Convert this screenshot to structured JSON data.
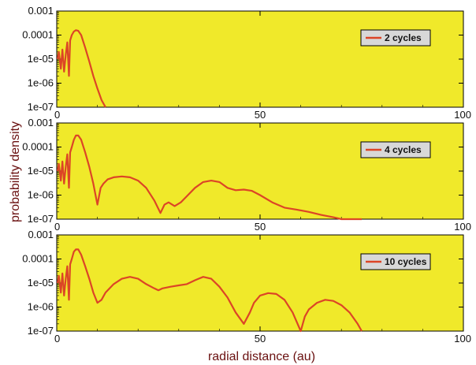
{
  "chart_data": {
    "type": "line",
    "xlabel": "radial distance (au)",
    "ylabel": "probability density",
    "xlim": [
      0,
      100
    ],
    "ylim": [
      1e-07,
      0.001
    ],
    "yscale": "log",
    "grid": false,
    "legend_placement": "top-right",
    "colors": {
      "background": "#f0e92a",
      "line": "#dc4526",
      "legend_box": "#d8d8d8"
    },
    "x_ticks": [
      "0",
      "50",
      "100"
    ],
    "y_ticks": [
      "0.001",
      "0.0001",
      "1e-05",
      "1e-06",
      "1e-07"
    ],
    "panels": [
      {
        "legend": "2 cycles",
        "x": [
          0.2,
          0.5,
          1,
          1.4,
          1.8,
          2.2,
          2.6,
          3,
          3.3,
          3.7,
          4.2,
          4.7,
          5.3,
          6,
          7,
          8,
          9,
          10,
          11,
          12
        ],
        "y": [
          1e-05,
          2e-05,
          4e-06,
          2.5e-05,
          3e-06,
          1.5e-05,
          5e-05,
          2e-06,
          6e-05,
          0.0001,
          0.00014,
          0.00016,
          0.00015,
          0.0001,
          3e-05,
          8e-06,
          2e-06,
          6e-07,
          2e-07,
          1e-07
        ]
      },
      {
        "legend": "4 cycles",
        "x": [
          0.2,
          0.5,
          1,
          1.4,
          1.8,
          2.2,
          2.6,
          3,
          3.3,
          3.7,
          4.2,
          4.7,
          5.3,
          6,
          7,
          8,
          9,
          10,
          10.8,
          11.5,
          12.5,
          14,
          16,
          18,
          20,
          22,
          24,
          25.5,
          26.5,
          27.5,
          29,
          30.5,
          32,
          34,
          36,
          38,
          40,
          42,
          44,
          46,
          48,
          50,
          53,
          56,
          59,
          62,
          65,
          68,
          70,
          72,
          75
        ],
        "y": [
          1e-05,
          2e-05,
          4e-06,
          2.5e-05,
          3e-06,
          1.5e-05,
          5e-05,
          2e-06,
          6e-05,
          0.0001,
          0.0002,
          0.0003,
          0.0003,
          0.0002,
          6e-05,
          1.5e-05,
          3e-06,
          4e-07,
          2e-06,
          3e-06,
          4.5e-06,
          5.5e-06,
          6e-06,
          5.5e-06,
          4e-06,
          2e-06,
          6e-07,
          1.8e-07,
          4e-07,
          5e-07,
          3.5e-07,
          5e-07,
          9e-07,
          2e-06,
          3.5e-06,
          4e-06,
          3.5e-06,
          2e-06,
          1.6e-06,
          1.7e-06,
          1.5e-06,
          1e-06,
          5e-07,
          3e-07,
          2.5e-07,
          2e-07,
          1.5e-07,
          1.2e-07,
          1e-07,
          1e-07,
          1e-07
        ]
      },
      {
        "legend": "10 cycles",
        "x": [
          0.2,
          0.5,
          1,
          1.4,
          1.8,
          2.2,
          2.6,
          3,
          3.3,
          3.7,
          4.2,
          4.7,
          5.3,
          6,
          7,
          8,
          9,
          10,
          11,
          12,
          14,
          16,
          18,
          20,
          22,
          24,
          25,
          26,
          28,
          30,
          32,
          34,
          36,
          38,
          40,
          42,
          44,
          46,
          47.5,
          48.5,
          50,
          52,
          54,
          56,
          58,
          60,
          61,
          62,
          64,
          66,
          68,
          70,
          72,
          74,
          75
        ],
        "y": [
          1e-05,
          2e-05,
          4e-06,
          2.5e-05,
          3e-06,
          1.5e-05,
          5e-05,
          2e-06,
          6e-05,
          0.0001,
          0.0002,
          0.00025,
          0.00025,
          0.00015,
          5e-05,
          1.5e-05,
          4e-06,
          1.5e-06,
          2e-06,
          4e-06,
          9e-06,
          1.5e-05,
          1.8e-05,
          1.5e-05,
          9e-06,
          6e-06,
          5e-06,
          6e-06,
          7e-06,
          8e-06,
          9e-06,
          1.3e-05,
          1.8e-05,
          1.5e-05,
          7e-06,
          2.5e-06,
          6e-07,
          2e-07,
          6e-07,
          1.5e-06,
          3e-06,
          3.8e-06,
          3.5e-06,
          2e-06,
          6e-07,
          1e-07,
          4e-07,
          8e-07,
          1.5e-06,
          2e-06,
          1.8e-06,
          1.2e-06,
          6e-07,
          2e-07,
          1e-07
        ]
      }
    ]
  }
}
